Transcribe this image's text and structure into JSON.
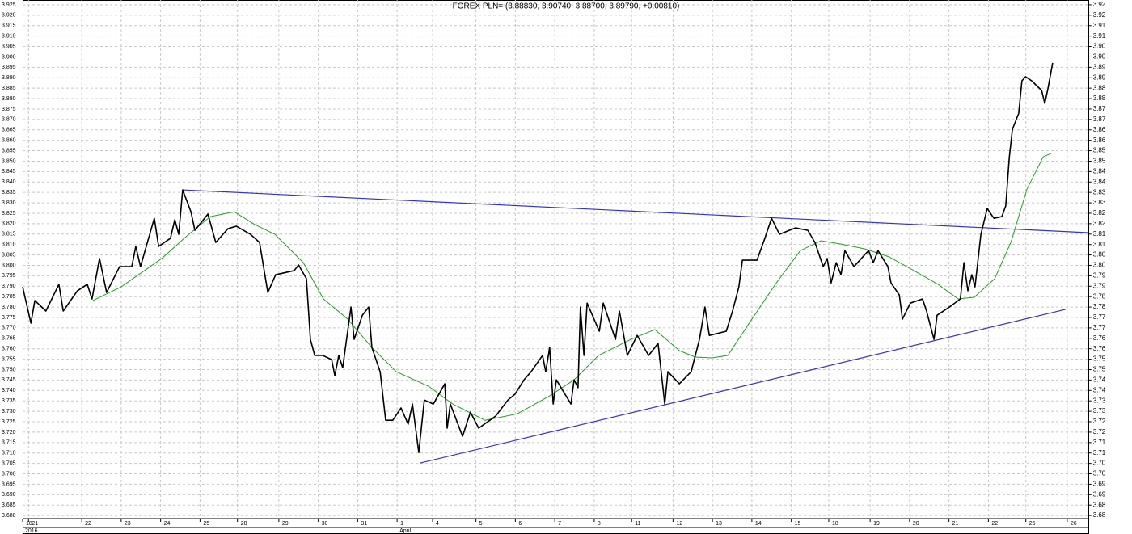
{
  "chart_data": {
    "type": "line",
    "title": "FOREX PLN= (3.88830, 3.90740, 3.88700, 3.89790, +0.00810)",
    "xlim": [
      0,
      27.05
    ],
    "xticks": [
      {
        "value": 0,
        "label": "18"
      },
      {
        "value": 0.15,
        "label": "21"
      },
      {
        "value": 1.5,
        "label": "22"
      },
      {
        "value": 2.5,
        "label": "23"
      },
      {
        "value": 3.5,
        "label": "24"
      },
      {
        "value": 4.5,
        "label": "25"
      },
      {
        "value": 5.45,
        "label": "28"
      },
      {
        "value": 6.5,
        "label": "29"
      },
      {
        "value": 7.5,
        "label": "30"
      },
      {
        "value": 8.5,
        "label": "31"
      },
      {
        "value": 9.5,
        "label": "1"
      },
      {
        "value": 10.4,
        "label": "4"
      },
      {
        "value": 11.5,
        "label": "5"
      },
      {
        "value": 12.5,
        "label": "6"
      },
      {
        "value": 13.5,
        "label": "7"
      },
      {
        "value": 14.5,
        "label": "8"
      },
      {
        "value": 15.45,
        "label": "11"
      },
      {
        "value": 16.5,
        "label": "12"
      },
      {
        "value": 17.5,
        "label": "13"
      },
      {
        "value": 18.5,
        "label": "14"
      },
      {
        "value": 19.5,
        "label": "15"
      },
      {
        "value": 20.45,
        "label": "18"
      },
      {
        "value": 21.5,
        "label": "19"
      },
      {
        "value": 22.5,
        "label": "20"
      },
      {
        "value": 23.5,
        "label": "21"
      },
      {
        "value": 24.5,
        "label": "22"
      },
      {
        "value": 25.45,
        "label": "25"
      },
      {
        "value": 26.5,
        "label": "26"
      }
    ],
    "xticks2": [
      {
        "value": 0,
        "label": "2016"
      },
      {
        "value": 9.5,
        "label": "April"
      }
    ],
    "ylim": [
      3.6785,
      3.9273
    ],
    "yticks": [
      {
        "value": 3.68,
        "label": "3.680"
      },
      3.685,
      {
        "value": 3.69,
        "label": "3.690"
      },
      3.695,
      {
        "value": 3.7,
        "label": "3.700"
      },
      3.705,
      {
        "value": 3.71,
        "label": "3.710"
      },
      3.715,
      {
        "value": 3.72,
        "label": "3.720"
      },
      3.725,
      {
        "value": 3.73,
        "label": "3.730"
      },
      3.735,
      {
        "value": 3.74,
        "label": "3.740"
      },
      3.745,
      {
        "value": 3.75,
        "label": "3.750"
      },
      3.755,
      {
        "value": 3.76,
        "label": "3.760"
      },
      3.765,
      {
        "value": 3.77,
        "label": "3.770"
      },
      3.775,
      {
        "value": 3.78,
        "label": "3.780"
      },
      3.785,
      {
        "value": 3.79,
        "label": "3.790"
      },
      3.795,
      {
        "value": 3.8,
        "label": "3.800"
      },
      3.805,
      {
        "value": 3.81,
        "label": "3.810"
      },
      3.815,
      {
        "value": 3.82,
        "label": "3.820"
      },
      3.825,
      {
        "value": 3.83,
        "label": "3.830"
      },
      3.835,
      {
        "value": 3.84,
        "label": "3.840"
      },
      3.845,
      {
        "value": 3.85,
        "label": "3.850"
      },
      3.855,
      {
        "value": 3.86,
        "label": "3.860"
      },
      3.865,
      {
        "value": 3.87,
        "label": "3.870"
      },
      3.875,
      {
        "value": 3.88,
        "label": "3.880"
      },
      3.885,
      {
        "value": 3.89,
        "label": "3.890"
      },
      3.895,
      {
        "value": 3.9,
        "label": "3.900"
      },
      3.905,
      {
        "value": 3.91,
        "label": "3.910"
      },
      3.915,
      {
        "value": 3.92,
        "label": "3.920"
      },
      3.925
    ],
    "y2lim": [
      3.6785,
      3.9273
    ],
    "y2ticks": [
      3.68,
      {
        "value": 3.685,
        "label": "3.68"
      },
      3.69,
      {
        "value": 3.695,
        "label": "3.69"
      },
      {
        "value": 3.7,
        "label": "3.70"
      },
      {
        "value": 3.705,
        "label": "3.70"
      },
      3.71,
      {
        "value": 3.715,
        "label": "3.71"
      },
      3.72,
      {
        "value": 3.725,
        "label": "3.72"
      },
      3.73,
      {
        "value": 3.735,
        "label": "3.73"
      },
      3.74,
      {
        "value": 3.745,
        "label": "3.74"
      },
      3.75,
      {
        "value": 3.755,
        "label": "3.75"
      },
      3.76,
      {
        "value": 3.765,
        "label": "3.76"
      },
      3.77,
      {
        "value": 3.775,
        "label": "3.77"
      },
      3.78,
      {
        "value": 3.785,
        "label": "3.78"
      },
      3.79,
      {
        "value": 3.795,
        "label": "3.79"
      },
      {
        "value": 3.8,
        "label": "3.80"
      },
      {
        "value": 3.805,
        "label": "3.80"
      },
      3.81,
      {
        "value": 3.815,
        "label": "3.81"
      },
      3.82,
      {
        "value": 3.825,
        "label": "3.82"
      },
      3.83,
      {
        "value": 3.835,
        "label": "3.83"
      },
      3.84,
      {
        "value": 3.845,
        "label": "3.84"
      },
      3.85,
      {
        "value": 3.855,
        "label": "3.85"
      },
      3.86,
      {
        "value": 3.865,
        "label": "3.86"
      },
      3.87,
      {
        "value": 3.875,
        "label": "3.87"
      },
      3.88,
      {
        "value": 3.885,
        "label": "3.88"
      },
      3.89,
      {
        "value": 3.895,
        "label": "3.89"
      },
      {
        "value": 3.9,
        "label": "3.90"
      },
      {
        "value": 3.905,
        "label": "3.90"
      },
      3.91,
      {
        "value": 3.915,
        "label": "3.91"
      },
      3.92,
      {
        "value": 3.925,
        "label": "3.92"
      }
    ],
    "grid": true,
    "series": [
      {
        "color": "#3333cc",
        "width": 1.2,
        "x": [
          4.06,
          27.03
        ],
        "values": [
          3.8362,
          3.8157
        ]
      },
      {
        "color": "#3333cc",
        "width": 1.2,
        "x": [
          10.09,
          26.46
        ],
        "values": [
          3.7052,
          3.7789
        ]
      },
      {
        "color": "#22a022",
        "width": 1,
        "x": [
          1.78,
          2.5,
          3.53,
          4.14,
          4.76,
          5.37,
          5.89,
          6.4,
          7.12,
          7.63,
          8.25,
          8.86,
          9.48,
          10.3,
          10.91,
          11.73,
          12.55,
          13.37,
          13.99,
          14.61,
          15.43,
          16.04,
          16.66,
          17.07,
          17.48,
          17.89,
          18.5,
          19.12,
          19.73,
          20.25,
          20.76,
          21.37,
          21.99,
          22.61,
          23.22,
          23.73,
          24.14,
          24.66,
          25.07,
          25.48,
          25.89,
          26.09
        ],
        "values": [
          3.7831,
          3.7897,
          3.8033,
          3.8137,
          3.8234,
          3.8257,
          3.8196,
          3.8149,
          3.8013,
          3.7839,
          3.7742,
          3.7606,
          3.749,
          3.742,
          3.7335,
          3.7257,
          3.7288,
          3.7374,
          3.7451,
          3.7568,
          3.7645,
          3.7692,
          3.7591,
          3.756,
          3.7556,
          3.7568,
          3.7742,
          3.7916,
          3.8071,
          3.8118,
          3.8102,
          3.8079,
          3.804,
          3.7975,
          3.7909,
          3.7839,
          3.7847,
          3.7936,
          3.811,
          3.8366,
          3.8521,
          3.8537
        ]
      },
      {
        "color": "#000000",
        "width": 1.6,
        "x": [
          0,
          0.21,
          0.31,
          0.59,
          0.92,
          1.03,
          1.39,
          1.64,
          1.76,
          1.95,
          2.13,
          2.46,
          2.77,
          2.87,
          2.99,
          3.34,
          3.45,
          3.75,
          3.86,
          3.96,
          4.06,
          4.27,
          4.37,
          4.7,
          4.9,
          5.21,
          5.42,
          5.78,
          6.01,
          6.22,
          6.42,
          6.89,
          7,
          7.2,
          7.3,
          7.41,
          7.61,
          7.84,
          7.92,
          8.02,
          8.12,
          8.33,
          8.41,
          8.62,
          8.78,
          8.86,
          9.07,
          9.21,
          9.39,
          9.6,
          9.78,
          9.89,
          10.05,
          10.19,
          10.42,
          10.71,
          10.77,
          10.85,
          11.16,
          11.36,
          11.57,
          12,
          12.31,
          12.49,
          12.72,
          12.9,
          13.19,
          13.27,
          13.37,
          13.46,
          13.54,
          13.91,
          13.99,
          14.09,
          14.15,
          14.24,
          14.32,
          14.63,
          14.73,
          15.04,
          15.14,
          15.34,
          15.59,
          15.88,
          16.12,
          16.29,
          16.37,
          16.66,
          16.96,
          17.17,
          17.31,
          17.42,
          17.85,
          18.01,
          18.17,
          18.26,
          18.63,
          18.83,
          19,
          19.2,
          19.61,
          19.92,
          20.1,
          20.31,
          20.41,
          20.51,
          20.64,
          20.76,
          20.86,
          21.09,
          21.46,
          21.58,
          21.7,
          21.95,
          22.03,
          22.24,
          22.32,
          22.52,
          22.83,
          22.93,
          23.12,
          23.2,
          23.51,
          23.79,
          23.88,
          23.98,
          24.08,
          24.16,
          24.31,
          24.47,
          24.64,
          24.84,
          24.94,
          25.03,
          25.11,
          25.27,
          25.35,
          25.44,
          25.6,
          25.85,
          25.93,
          26.01,
          26.13
        ],
        "values": [
          3.7897,
          3.7723,
          3.7831,
          3.7781,
          3.7909,
          3.7781,
          3.7878,
          3.7909,
          3.7839,
          3.8033,
          3.787,
          3.7994,
          3.7994,
          3.8091,
          3.7994,
          3.8226,
          3.8091,
          3.813,
          3.8219,
          3.8149,
          3.8362,
          3.8257,
          3.8168,
          3.8246,
          3.811,
          3.8176,
          3.8188,
          3.8149,
          3.811,
          3.787,
          3.7955,
          3.7975,
          3.8002,
          3.7936,
          3.7645,
          3.7568,
          3.7568,
          3.7548,
          3.7471,
          3.7568,
          3.7509,
          3.78,
          3.7645,
          3.7761,
          3.78,
          3.7606,
          3.749,
          3.7257,
          3.7257,
          3.7316,
          3.7238,
          3.7335,
          3.7102,
          3.7354,
          3.7335,
          3.7432,
          3.7219,
          3.7335,
          3.718,
          3.7296,
          3.7219,
          3.7277,
          3.7354,
          3.7382,
          3.7451,
          3.749,
          3.7568,
          3.749,
          3.7606,
          3.7335,
          3.7451,
          3.7335,
          3.7451,
          3.7413,
          3.78,
          3.7568,
          3.7819,
          3.7684,
          3.7819,
          3.7645,
          3.7781,
          3.7568,
          3.7664,
          3.7568,
          3.7626,
          3.7335,
          3.749,
          3.7432,
          3.749,
          3.7645,
          3.78,
          3.7664,
          3.7684,
          3.7781,
          3.7897,
          3.8025,
          3.8025,
          3.813,
          3.8226,
          3.8149,
          3.818,
          3.8168,
          3.811,
          3.7994,
          3.8033,
          3.7916,
          3.8013,
          3.7955,
          3.8071,
          3.7994,
          3.8071,
          3.8013,
          3.8071,
          3.7994,
          3.7916,
          3.7858,
          3.7742,
          3.7819,
          3.7839,
          3.7781,
          3.7645,
          3.7761,
          3.78,
          3.7839,
          3.8013,
          3.7878,
          3.7955,
          3.7897,
          3.8149,
          3.8273,
          3.8226,
          3.8234,
          3.8285,
          3.8517,
          3.8653,
          3.873,
          3.8885,
          3.8905,
          3.8885,
          3.8839,
          3.8777,
          3.8847,
          3.8971
        ]
      }
    ]
  }
}
